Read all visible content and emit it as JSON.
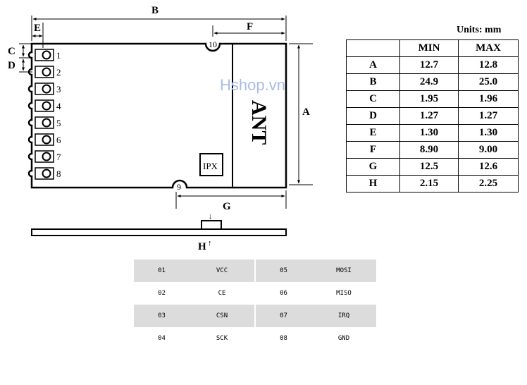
{
  "header": {
    "units": "Units: mm"
  },
  "watermark": "Hshop.vn",
  "module": {
    "dimension_letters": {
      "A": "A",
      "B": "B",
      "C": "C",
      "D": "D",
      "E": "E",
      "F": "F",
      "G": "G",
      "H": "H"
    },
    "pin_numbers": [
      "1",
      "2",
      "3",
      "4",
      "5",
      "6",
      "7",
      "8"
    ],
    "pad_9": "9",
    "pad_10": "10",
    "antenna_label": "ANT",
    "ipx_label": "IPX",
    "arrow_down": "↓",
    "arrow_up": "↑"
  },
  "dimensions_table": {
    "headers": [
      "",
      "MIN",
      "MAX"
    ],
    "rows": [
      [
        "A",
        "12.7",
        "12.8"
      ],
      [
        "B",
        "24.9",
        "25.0"
      ],
      [
        "C",
        "1.95",
        "1.96"
      ],
      [
        "D",
        "1.27",
        "1.27"
      ],
      [
        "E",
        "1.30",
        "1.30"
      ],
      [
        "F",
        "8.90",
        "9.00"
      ],
      [
        "G",
        "12.5",
        "12.6"
      ],
      [
        "H",
        "2.15",
        "2.25"
      ]
    ]
  },
  "pin_table": {
    "rows": [
      [
        "01",
        "VCC",
        "05",
        "MOSI"
      ],
      [
        "02",
        "CE",
        "06",
        "MISO"
      ],
      [
        "03",
        "CSN",
        "07",
        "IRQ"
      ],
      [
        "04",
        "SCK",
        "08",
        "GND"
      ]
    ]
  }
}
